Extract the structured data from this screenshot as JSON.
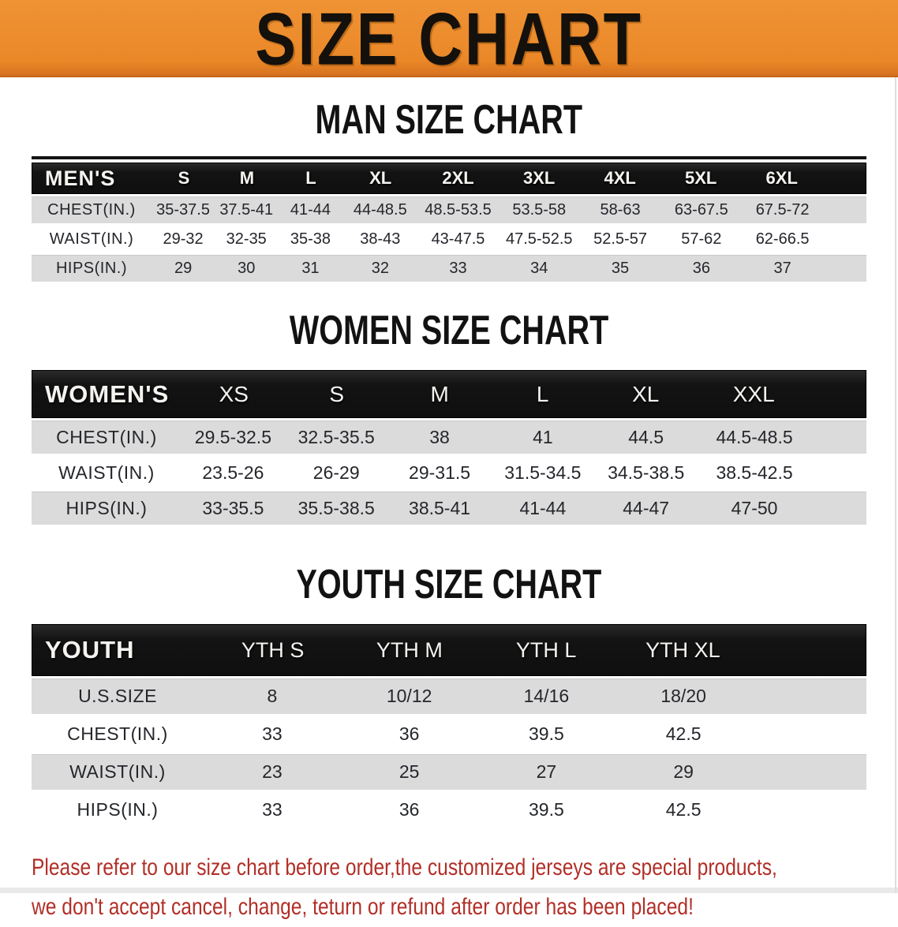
{
  "banner": {
    "title": "SIZE CHART"
  },
  "sections": [
    {
      "heading": "MAN SIZE CHART",
      "header_label": "MEN'S",
      "columns": [
        "S",
        "M",
        "L",
        "XL",
        "2XL",
        "3XL",
        "4XL",
        "5XL",
        "6XL"
      ],
      "rows": [
        {
          "label": "CHEST(IN.)",
          "values": [
            "35-37.5",
            "37.5-41",
            "41-44",
            "44-48.5",
            "48.5-53.5",
            "53.5-58",
            "58-63",
            "63-67.5",
            "67.5-72"
          ]
        },
        {
          "label": "WAIST(IN.)",
          "values": [
            "29-32",
            "32-35",
            "35-38",
            "38-43",
            "43-47.5",
            "47.5-52.5",
            "52.5-57",
            "57-62",
            "62-66.5"
          ]
        },
        {
          "label": "HIPS(IN.)",
          "values": [
            "29",
            "30",
            "31",
            "32",
            "33",
            "34",
            "35",
            "36",
            "37"
          ]
        }
      ]
    },
    {
      "heading": "WOMEN SIZE CHART",
      "header_label": "WOMEN'S",
      "columns": [
        "XS",
        "S",
        "M",
        "L",
        "XL",
        "XXL"
      ],
      "rows": [
        {
          "label": "CHEST(IN.)",
          "values": [
            "29.5-32.5",
            "32.5-35.5",
            "38",
            "41",
            "44.5",
            "44.5-48.5"
          ]
        },
        {
          "label": "WAIST(IN.)",
          "values": [
            "23.5-26",
            "26-29",
            "29-31.5",
            "31.5-34.5",
            "34.5-38.5",
            "38.5-42.5"
          ]
        },
        {
          "label": "HIPS(IN.)",
          "values": [
            "33-35.5",
            "35.5-38.5",
            "38.5-41",
            "41-44",
            "44-47",
            "47-50"
          ]
        }
      ]
    },
    {
      "heading": "YOUTH SIZE CHART",
      "header_label": "YOUTH",
      "columns": [
        "YTH S",
        "YTH M",
        "YTH L",
        "YTH XL"
      ],
      "rows": [
        {
          "label": "U.S.SIZE",
          "values": [
            "8",
            "10/12",
            "14/16",
            "18/20"
          ]
        },
        {
          "label": "CHEST(IN.)",
          "values": [
            "33",
            "36",
            "39.5",
            "42.5"
          ]
        },
        {
          "label": "WAIST(IN.)",
          "values": [
            "23",
            "25",
            "27",
            "29"
          ]
        },
        {
          "label": "HIPS(IN.)",
          "values": [
            "33",
            "36",
            "39.5",
            "42.5"
          ]
        }
      ]
    }
  ],
  "disclaimer": {
    "line1": "Please refer to our size chart before order,the customized jerseys are special products,",
    "line2": "we don't accept cancel, change, teturn or refund after order has been placed!"
  },
  "colors": {
    "banner_orange": "#ea8828",
    "header_bar_black": "#131313",
    "row_gray": "#dbdbdb",
    "disclaimer_red": "#b12f27"
  }
}
